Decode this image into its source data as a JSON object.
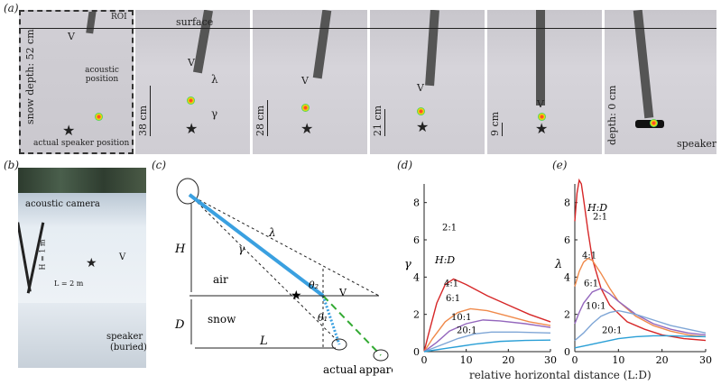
{
  "labels": {
    "a": "(a)",
    "b": "(b)",
    "c": "(c)",
    "d": "(d)",
    "e": "(e)"
  },
  "panel_a": {
    "roi": "ROI",
    "surface": "surface",
    "v": "V",
    "snow_depth": "snow depth: 52 cm",
    "acoustic_position": "acoustic position",
    "actual_speaker": "actual speaker position",
    "lambda": "λ",
    "gamma": "γ",
    "depths": [
      "38 cm",
      "28 cm",
      "21 cm",
      "9 cm",
      "depth: 0 cm"
    ],
    "speaker": "speaker"
  },
  "panel_b": {
    "camera": "acoustic camera",
    "h": "H = 1 m",
    "l": "L = 2 m",
    "v": "V",
    "speaker": "speaker",
    "buried": "(buried)"
  },
  "panel_c": {
    "H": "H",
    "D": "D",
    "L": "L",
    "air": "air",
    "snow": "snow",
    "lambda": "λ",
    "gamma": "γ",
    "theta1": "θ₁",
    "theta2": "θ₂",
    "V": "V",
    "actual": "actual",
    "apparent": "apparent"
  },
  "xlabel": "relative horizontal distance (L:D)",
  "colors": {
    "2:1": "#d62728",
    "4:1": "#f08a4b",
    "6:1": "#9467bd",
    "10:1": "#7fa6d6",
    "20:1": "#2a9fd6"
  },
  "chart_data": [
    {
      "type": "line",
      "ylabel": "γ",
      "legend_title": "H:D",
      "xlim": [
        0,
        30
      ],
      "ylim": [
        0,
        9
      ],
      "xticks": [
        0,
        10,
        20,
        30
      ],
      "yticks": [
        0,
        2,
        4,
        6,
        8
      ],
      "series": [
        {
          "name": "2:1",
          "x": [
            0,
            1,
            3,
            5,
            7,
            10,
            15,
            20,
            25,
            30
          ],
          "y": [
            0,
            0.9,
            2.6,
            3.6,
            3.9,
            3.6,
            3.0,
            2.5,
            2.0,
            1.6
          ]
        },
        {
          "name": "4:1",
          "x": [
            0,
            2,
            5,
            8,
            11,
            15,
            20,
            25,
            30
          ],
          "y": [
            0,
            0.7,
            1.6,
            2.1,
            2.3,
            2.2,
            1.9,
            1.6,
            1.4
          ]
        },
        {
          "name": "6:1",
          "x": [
            0,
            3,
            6,
            10,
            14,
            18,
            24,
            30
          ],
          "y": [
            0,
            0.5,
            1.1,
            1.5,
            1.7,
            1.65,
            1.5,
            1.3
          ]
        },
        {
          "name": "10:1",
          "x": [
            0,
            4,
            8,
            12,
            16,
            22,
            30
          ],
          "y": [
            0,
            0.35,
            0.7,
            0.95,
            1.05,
            1.05,
            1.0
          ]
        },
        {
          "name": "20:1",
          "x": [
            0,
            6,
            12,
            18,
            24,
            30
          ],
          "y": [
            0,
            0.2,
            0.4,
            0.55,
            0.6,
            0.62
          ]
        }
      ]
    },
    {
      "type": "line",
      "ylabel": "λ",
      "legend_title": "H:D",
      "xlim": [
        0,
        30
      ],
      "ylim": [
        0,
        9
      ],
      "xticks": [
        0,
        10,
        20,
        30
      ],
      "yticks": [
        0,
        2,
        4,
        6,
        8
      ],
      "series": [
        {
          "name": "2:1",
          "x": [
            0,
            0.5,
            1,
            1.5,
            2,
            3,
            4,
            6,
            8,
            12,
            16,
            20,
            25,
            30
          ],
          "y": [
            7,
            8.5,
            9.2,
            9,
            8.2,
            6.5,
            5,
            3.4,
            2.5,
            1.6,
            1.2,
            0.9,
            0.7,
            0.6
          ]
        },
        {
          "name": "4:1",
          "x": [
            0,
            1,
            2,
            3,
            4,
            6,
            8,
            10,
            14,
            18,
            22,
            26,
            30
          ],
          "y": [
            3.5,
            4.3,
            4.8,
            5.0,
            4.9,
            4.2,
            3.4,
            2.7,
            1.9,
            1.4,
            1.1,
            0.9,
            0.8
          ]
        },
        {
          "name": "6:1",
          "x": [
            0,
            1,
            2,
            4,
            6,
            8,
            10,
            14,
            18,
            22,
            26,
            30
          ],
          "y": [
            1.5,
            2.1,
            2.6,
            3.2,
            3.4,
            3.1,
            2.7,
            2.0,
            1.5,
            1.2,
            1.0,
            0.9
          ]
        },
        {
          "name": "10:1",
          "x": [
            0,
            2,
            4,
            6,
            8,
            10,
            14,
            18,
            22,
            26,
            30
          ],
          "y": [
            0.6,
            1.0,
            1.5,
            1.9,
            2.1,
            2.2,
            2.0,
            1.7,
            1.4,
            1.2,
            1.0
          ]
        },
        {
          "name": "20:1",
          "x": [
            0,
            3,
            6,
            10,
            14,
            18,
            22,
            26,
            30
          ],
          "y": [
            0.2,
            0.35,
            0.5,
            0.7,
            0.8,
            0.85,
            0.85,
            0.82,
            0.8
          ]
        }
      ]
    }
  ]
}
